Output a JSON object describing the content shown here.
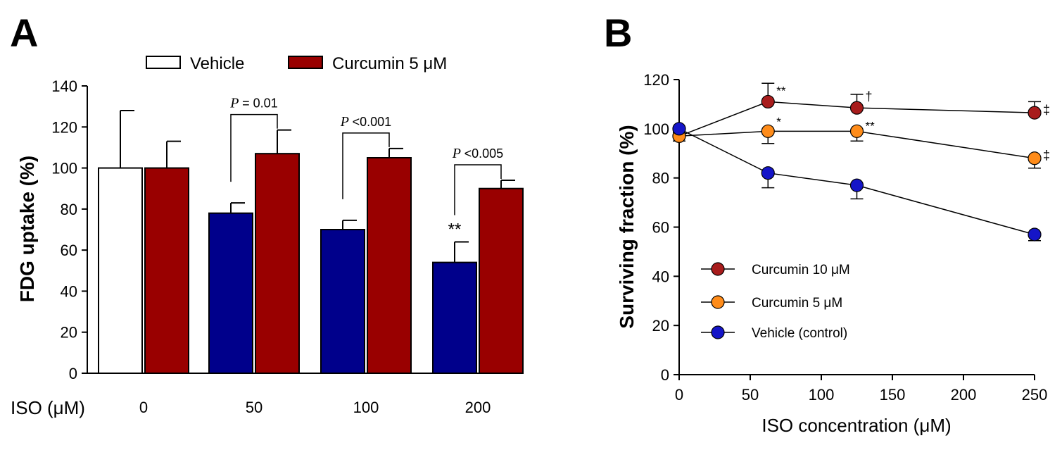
{
  "colors": {
    "vehicle_fill": "#ffffff",
    "curcumin_fill": "#990000",
    "iso_fill": "#00008b",
    "curcumin10": "#a81c1c",
    "curcumin5": "#ff8c1a",
    "vehicle_control": "#1515c8"
  },
  "chart_data": [
    {
      "panel": "A",
      "type": "bar",
      "ylabel": "FDG  uptake (%)",
      "ylim": [
        0,
        140
      ],
      "yticks": [
        "0",
        "20",
        "40",
        "60",
        "80",
        "100",
        "120",
        "140"
      ],
      "x_prefix": "ISO (μM)",
      "categories": [
        "0",
        "50",
        "100",
        "200"
      ],
      "legend": [
        "Vehicle",
        "Curcumin 5 μM"
      ],
      "series": [
        {
          "name": "Vehicle",
          "values": [
            100,
            78,
            70,
            54
          ],
          "errors": [
            28,
            5,
            4.5,
            10
          ]
        },
        {
          "name": "Curcumin 5 μM",
          "values": [
            100,
            107,
            105,
            90
          ],
          "errors": [
            13,
            11.5,
            4.5,
            4
          ]
        }
      ],
      "annotations": [
        {
          "category": "50",
          "p_label": "P",
          "p_value": "= 0.01"
        },
        {
          "category": "100",
          "p_label": "P",
          "p_value": "<0.001"
        },
        {
          "category": "200",
          "p_label": "P",
          "p_value": "<0.005"
        }
      ],
      "star_label": "**"
    },
    {
      "panel": "B",
      "type": "line",
      "ylabel": "Surviving fraction (%)",
      "xlabel": "ISO concentration (μM)",
      "xlim": [
        0,
        250
      ],
      "ylim": [
        0,
        120
      ],
      "xticks": [
        "0",
        "50",
        "100",
        "150",
        "200",
        "250"
      ],
      "yticks": [
        "0",
        "20",
        "40",
        "60",
        "80",
        "100",
        "120"
      ],
      "x": [
        0,
        62.5,
        125,
        250
      ],
      "series": [
        {
          "name": "Curcumin 10 μM",
          "values": [
            97,
            111,
            108.5,
            106.5
          ],
          "errors": [
            2,
            7.5,
            5.5,
            4.5
          ],
          "marks": [
            "",
            "**",
            "†",
            "‡"
          ]
        },
        {
          "name": "Curcumin  5 μM",
          "values": [
            97,
            99,
            99,
            88
          ],
          "errors": [
            2,
            5,
            4,
            4
          ],
          "marks": [
            "",
            "*",
            "**",
            "‡"
          ]
        },
        {
          "name": "Vehicle (control)",
          "values": [
            100,
            82,
            77,
            57
          ],
          "errors": [
            1.5,
            6,
            5.5,
            2.5
          ],
          "marks": [
            "",
            "",
            "",
            ""
          ]
        }
      ]
    }
  ]
}
